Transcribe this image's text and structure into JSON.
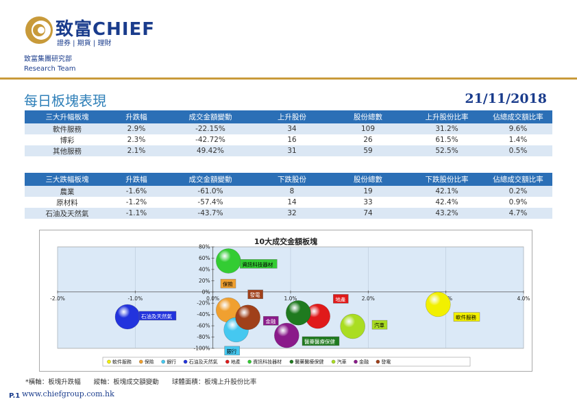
{
  "header": {
    "brand": "致富CHIEF",
    "brand_sub": "證券 | 期貨 | 理財",
    "dept_line1": "致富集團研究部",
    "dept_line2": "Research Team"
  },
  "page": {
    "title": "每日板塊表現",
    "date": "21/11/2018"
  },
  "table_up": {
    "headers": [
      "三大升幅板塊",
      "升跌幅",
      "成交金額變動",
      "上升股份",
      "股份總數",
      "上升股份比率",
      "佔總成交額比率"
    ],
    "rows": [
      [
        "軟件服務",
        "2.9%",
        "-22.15%",
        "34",
        "109",
        "31.2%",
        "9.6%"
      ],
      [
        "博彩",
        "2.3%",
        "-42.72%",
        "16",
        "26",
        "61.5%",
        "1.4%"
      ],
      [
        "其他服務",
        "2.1%",
        "49.42%",
        "31",
        "59",
        "52.5%",
        "0.5%"
      ]
    ]
  },
  "table_down": {
    "headers": [
      "三大跌幅板塊",
      "升跌幅",
      "成交金額變動",
      "下跌股份",
      "股份總數",
      "下跌股份比率",
      "佔總成交額比率"
    ],
    "rows": [
      [
        "農業",
        "-1.6%",
        "-61.0%",
        "8",
        "19",
        "42.1%",
        "0.2%"
      ],
      [
        "原材料",
        "-1.2%",
        "-57.4%",
        "14",
        "33",
        "42.4%",
        "0.9%"
      ],
      [
        "石油及天然氣",
        "-1.1%",
        "-43.7%",
        "32",
        "74",
        "43.2%",
        "4.7%"
      ]
    ]
  },
  "chart_data": {
    "type": "scatter",
    "title": "10大成交金額板塊",
    "xlim": [
      -2.0,
      4.0
    ],
    "ylim": [
      -100,
      80
    ],
    "x_ticks": [
      "-2.0%",
      "-1.0%",
      "0.0%",
      "1.0%",
      "2.0%",
      "3.0%",
      "4.0%"
    ],
    "y_ticks": [
      "80%",
      "60%",
      "40%",
      "20%",
      "0%",
      "-20%",
      "-40%",
      "-60%",
      "-80%",
      "-100%"
    ],
    "legend_position": "bottom",
    "series": [
      {
        "name": "軟件服務",
        "x": 2.9,
        "y": -22,
        "color": "#f2f000",
        "label_box": "#f2f000",
        "label_color": "#000000"
      },
      {
        "name": "保險",
        "x": 0.2,
        "y": -32,
        "color": "#f0a030",
        "label_box": "#f0a030",
        "label_color": "#000000"
      },
      {
        "name": "銀行",
        "x": 0.3,
        "y": -67,
        "color": "#45c8f0",
        "label_box": "#45c8f0",
        "label_color": "#000000"
      },
      {
        "name": "石油及天然氣",
        "x": -1.1,
        "y": -44,
        "color": "#2233dd",
        "label_box": "#2233dd",
        "label_color": "#ffffff"
      },
      {
        "name": "地產",
        "x": 1.35,
        "y": -43,
        "color": "#e01a1a",
        "label_box": "#e01a1a",
        "label_color": "#ffffff"
      },
      {
        "name": "資訊科技器材",
        "x": 0.2,
        "y": 55,
        "color": "#33cc33",
        "label_box": "#33cc33",
        "label_color": "#000000"
      },
      {
        "name": "醫藥醫療保健",
        "x": 1.1,
        "y": -37,
        "color": "#1f7a1f",
        "label_box": "#1f7a1f",
        "label_color": "#ffffff"
      },
      {
        "name": "汽車",
        "x": 1.8,
        "y": -61,
        "color": "#aadd22",
        "label_box": "#aadd22",
        "label_color": "#000000"
      },
      {
        "name": "金融",
        "x": 0.95,
        "y": -77,
        "color": "#8a1a8a",
        "label_box": "#8a1a8a",
        "label_color": "#ffffff"
      },
      {
        "name": "發電",
        "x": 0.45,
        "y": -45,
        "color": "#a0401a",
        "label_box": "#a0401a",
        "label_color": "#ffffff"
      }
    ],
    "point_labels": [
      {
        "name": "資訊科技器材",
        "lx": 0.35,
        "ly": 48
      },
      {
        "name": "保險",
        "lx": 0.1,
        "ly": 13
      },
      {
        "name": "發電",
        "lx": 0.45,
        "ly": -6
      },
      {
        "name": "地產",
        "lx": 1.55,
        "ly": -14
      },
      {
        "name": "石油及天然氣",
        "lx": -0.95,
        "ly": -44
      },
      {
        "name": "金融",
        "lx": 0.65,
        "ly": -53
      },
      {
        "name": "汽車",
        "lx": 2.05,
        "ly": -60
      },
      {
        "name": "軟件服務",
        "lx": 3.1,
        "ly": -46
      },
      {
        "name": "醫藥醫療保健",
        "lx": 1.15,
        "ly": -89
      },
      {
        "name": "銀行",
        "lx": 0.15,
        "ly": -106
      }
    ],
    "legend_order": [
      "軟件服務",
      "保險",
      "銀行",
      "石油及天然氣",
      "地產",
      "資訊科技器材",
      "醫藥醫療保健",
      "汽車",
      "金融",
      "發電"
    ]
  },
  "footer": {
    "note_x": "*橫軸：板塊升跌幅",
    "note_y": "縱軸：板塊成交額變動",
    "note_size": "球體面積：板塊上升股份比率",
    "page": "P.1",
    "site": "www.chiefgroup.com.hk"
  },
  "colors": {
    "brand": "#1a3c8c",
    "accent": "#2b6fb6",
    "gold": "#c89a3a",
    "plot_bg": "#dbe9f7"
  }
}
